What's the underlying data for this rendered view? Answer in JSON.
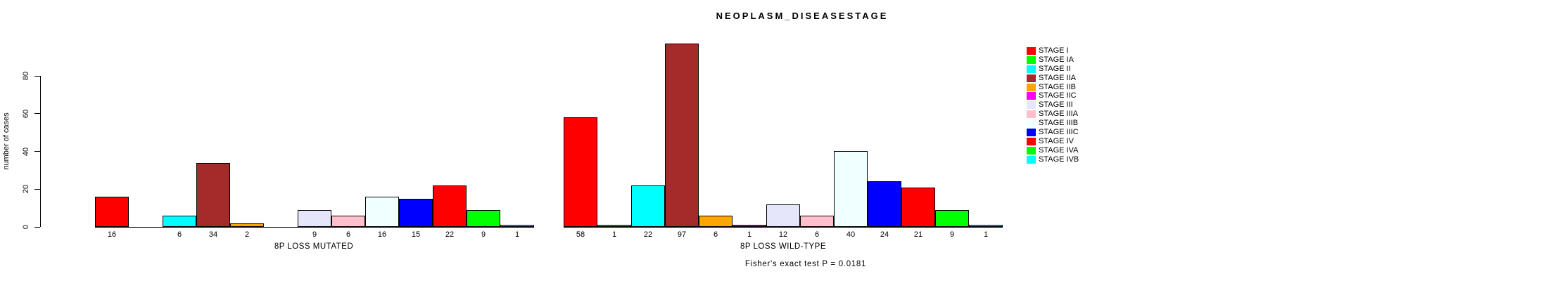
{
  "chart_data": {
    "type": "bar",
    "title": "NEOPLASM_DISEASESTAGE",
    "ylabel": "number of cases",
    "yticks": [
      0,
      20,
      40,
      60,
      80
    ],
    "categories": [
      "STAGE I",
      "STAGE IA",
      "STAGE II",
      "STAGE IIA",
      "STAGE IIB",
      "STAGE IIC",
      "STAGE III",
      "STAGE IIIA",
      "STAGE IIIB",
      "STAGE IIIC",
      "STAGE IV",
      "STAGE IVA",
      "STAGE IVB"
    ],
    "colors": [
      "#FF0000",
      "#00FF00",
      "#00FFFF",
      "#A52A2A",
      "#FFA500",
      "#FF00FF",
      "#E6E6FA",
      "#FFC0CB",
      "#F0FFFF",
      "#0000FF",
      "#FF0000",
      "#00FF00",
      "#00FFFF"
    ],
    "groups": [
      {
        "label": "8P LOSS MUTATED",
        "values": [
          16,
          0,
          6,
          34,
          2,
          0,
          9,
          6,
          16,
          15,
          22,
          9,
          1
        ]
      },
      {
        "label": "8P LOSS WILD-TYPE",
        "values": [
          58,
          1,
          22,
          97,
          6,
          1,
          12,
          6,
          40,
          24,
          21,
          9,
          1
        ]
      }
    ],
    "annotation": "Fisher's exact test P = 0.0181",
    "legend_position": "right",
    "grid": false,
    "bar_border_color": "#000000"
  }
}
